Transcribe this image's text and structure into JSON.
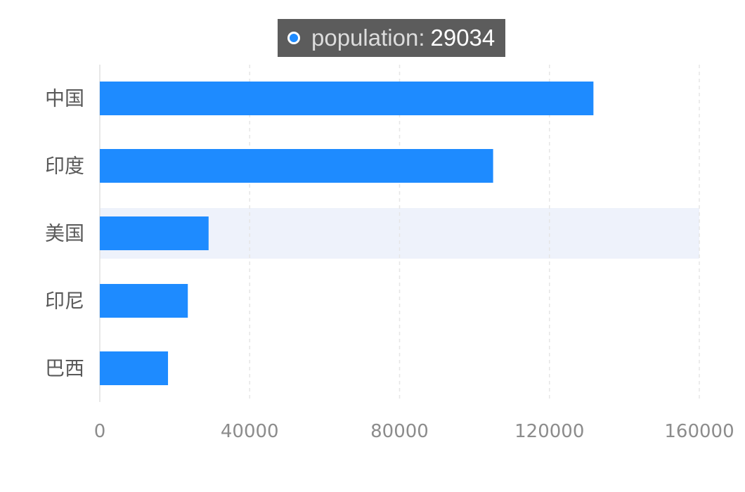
{
  "chart_data": {
    "type": "bar",
    "orientation": "horizontal",
    "categories": [
      "中国",
      "印度",
      "美国",
      "印尼",
      "巴西"
    ],
    "series": [
      {
        "name": "population",
        "values": [
          131744,
          104970,
          29034,
          23489,
          18203
        ]
      }
    ],
    "x_ticks": [
      "0",
      "40000",
      "80000",
      "120000",
      "160000"
    ],
    "xlim": [
      0,
      160000
    ],
    "grid": "vertical-dashed",
    "highlighted_category": "美国",
    "colors": {
      "bar": "#1e8bff",
      "highlight_band": "#eef2fb",
      "grid": "#e6e6e6",
      "axis": "#e0e0e0"
    }
  },
  "tooltip": {
    "name": "population",
    "separator": ": ",
    "value": "29034"
  }
}
